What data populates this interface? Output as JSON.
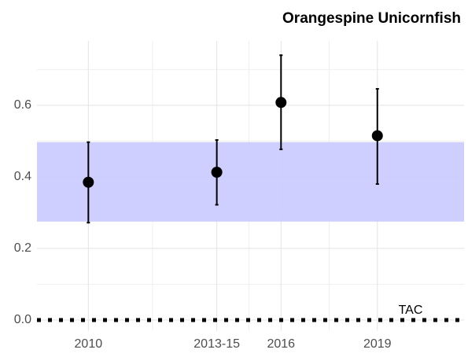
{
  "chart_data": {
    "type": "errorpoint",
    "title": "Orangespine Unicornfish",
    "x": [
      2010,
      2014,
      2016,
      2019
    ],
    "values": [
      0.385,
      0.413,
      0.608,
      0.515
    ],
    "lower": [
      0.272,
      0.322,
      0.477,
      0.38
    ],
    "upper": [
      0.497,
      0.503,
      0.74,
      0.646
    ],
    "color": "#000000",
    "band": [
      0.275,
      0.497
    ],
    "band_color": "#ccccff",
    "reference_line": {
      "label": "TAC",
      "value": 0
    },
    "xlim": [
      2008.4,
      2021.7
    ],
    "xticks": [
      2010,
      {
        "value": 2014,
        "label": "2013-15"
      },
      2016,
      2019
    ],
    "ylim": [
      -0.03,
      0.78
    ],
    "yticks": [
      {
        "value": 0,
        "label": "0.0"
      },
      0.2,
      0.4,
      0.6
    ],
    "grid": true
  }
}
